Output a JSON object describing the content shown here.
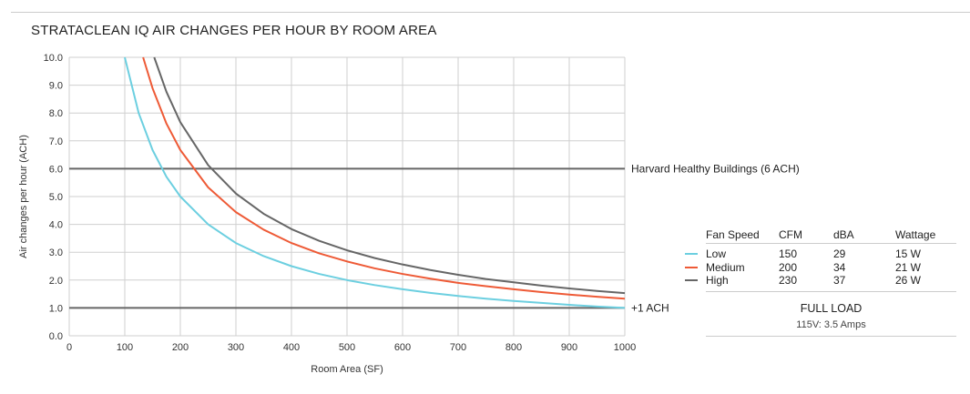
{
  "chart_data": {
    "type": "line",
    "title": "STRATACLEAN IQ AIR CHANGES PER HOUR BY ROOM AREA",
    "xlabel": "Room Area (SF)",
    "ylabel": "Air changes per hour (ACH)",
    "xlim": [
      0,
      1000
    ],
    "ylim": [
      0,
      10
    ],
    "xticks": [
      "0",
      "100",
      "200",
      "300",
      "400",
      "500",
      "600",
      "700",
      "800",
      "900",
      "1000"
    ],
    "yticks": [
      "0.0",
      "1.0",
      "2.0",
      "3.0",
      "4.0",
      "5.0",
      "6.0",
      "7.0",
      "8.0",
      "9.0",
      "10.0"
    ],
    "grid": true,
    "series": [
      {
        "name": "Low",
        "color": "#6ccfe0",
        "x": [
          100,
          125,
          150,
          175,
          200,
          250,
          300,
          350,
          400,
          450,
          500,
          550,
          600,
          650,
          700,
          750,
          800,
          850,
          900,
          950,
          1000
        ],
        "y": [
          10.0,
          8.0,
          6.67,
          5.71,
          5.0,
          4.0,
          3.33,
          2.86,
          2.5,
          2.22,
          2.0,
          1.82,
          1.67,
          1.54,
          1.43,
          1.33,
          1.25,
          1.18,
          1.11,
          1.05,
          1.0
        ]
      },
      {
        "name": "Medium",
        "color": "#ee5a36",
        "x": [
          133,
          150,
          175,
          200,
          250,
          300,
          350,
          400,
          450,
          500,
          550,
          600,
          650,
          700,
          750,
          800,
          850,
          900,
          950,
          1000
        ],
        "y": [
          10.0,
          8.89,
          7.62,
          6.67,
          5.33,
          4.44,
          3.81,
          3.33,
          2.96,
          2.67,
          2.42,
          2.22,
          2.05,
          1.9,
          1.78,
          1.67,
          1.57,
          1.48,
          1.4,
          1.33
        ]
      },
      {
        "name": "High",
        "color": "#666666",
        "x": [
          153,
          175,
          200,
          250,
          300,
          350,
          400,
          450,
          500,
          550,
          600,
          650,
          700,
          750,
          800,
          850,
          900,
          950,
          1000
        ],
        "y": [
          10.0,
          8.76,
          7.67,
          6.13,
          5.11,
          4.38,
          3.83,
          3.41,
          3.07,
          2.79,
          2.56,
          2.36,
          2.19,
          2.04,
          1.92,
          1.8,
          1.7,
          1.61,
          1.53
        ]
      }
    ],
    "reference_lines": [
      {
        "y": 6,
        "label": "Harvard Healthy Buildings (6 ACH)",
        "color": "#666666"
      },
      {
        "y": 1,
        "label": "+1 ACH",
        "color": "#666666"
      }
    ]
  },
  "table": {
    "headers": [
      "Fan Speed",
      "CFM",
      "dBA",
      "Wattage"
    ],
    "rows": [
      {
        "speed": "Low",
        "cfm": "150",
        "dba": "29",
        "watt": "15 W",
        "color": "#6ccfe0"
      },
      {
        "speed": "Medium",
        "cfm": "200",
        "dba": "34",
        "watt": "21 W",
        "color": "#ee5a36"
      },
      {
        "speed": "High",
        "cfm": "230",
        "dba": "37",
        "watt": "26 W",
        "color": "#666666"
      }
    ],
    "full_load": "FULL LOAD",
    "amps": "115V: 3.5 Amps"
  }
}
